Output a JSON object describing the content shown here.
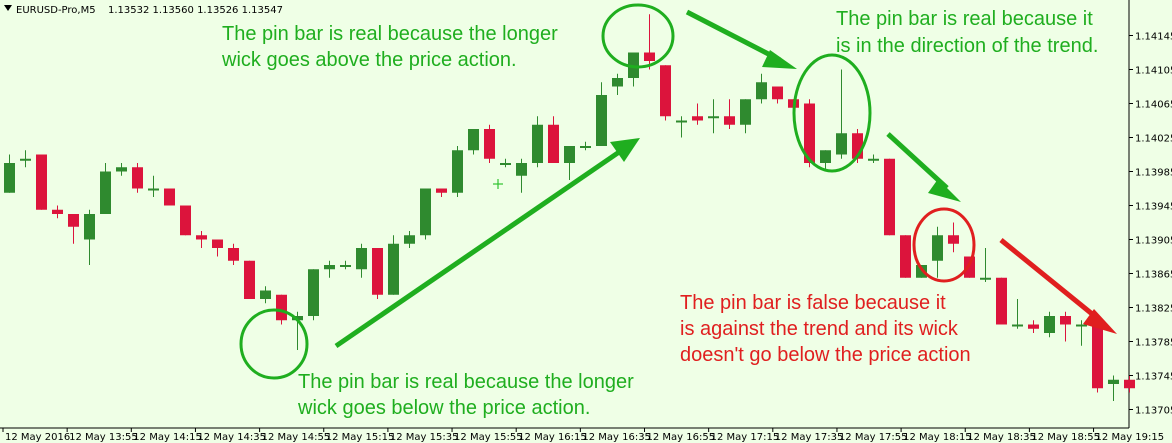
{
  "header": {
    "symbol": "EURUSD-Pro,M5",
    "ohlc": "1.13532 1.13560 1.13526 1.13547"
  },
  "colors": {
    "background": "#efffe6",
    "bull": "#2f8a2f",
    "bear": "#dc143c",
    "annotation_green": "#1fae1f",
    "annotation_red": "#e01f1f"
  },
  "chart_data": {
    "type": "candlestick",
    "title": "",
    "xlabel": "",
    "ylabel": "",
    "ylim": [
      1.13695,
      1.14175
    ],
    "y_ticks": [
      "1.14145",
      "1.14105",
      "1.14065",
      "1.14025",
      "1.13985",
      "1.13945",
      "1.13905",
      "1.13865",
      "1.13825",
      "1.13785",
      "1.13745",
      "1.13705"
    ],
    "x_ticks": [
      "12 May 2016",
      "12 May 13:55",
      "12 May 14:15",
      "12 May 14:35",
      "12 May 14:55",
      "12 May 15:15",
      "12 May 15:35",
      "12 May 15:55",
      "12 May 16:15",
      "12 May 16:35",
      "12 May 16:55",
      "12 May 17:15",
      "12 May 17:35",
      "12 May 17:55",
      "12 May 18:15",
      "12 May 18:35",
      "12 May 18:55",
      "12 May 19:15"
    ],
    "candles": [
      {
        "o": 1.1396,
        "h": 1.14005,
        "l": 1.1396,
        "c": 1.13995
      },
      {
        "o": 1.14,
        "h": 1.1401,
        "l": 1.1399,
        "c": 1.14
      },
      {
        "o": 1.14005,
        "h": 1.14005,
        "l": 1.1394,
        "c": 1.1394
      },
      {
        "o": 1.1394,
        "h": 1.13945,
        "l": 1.1393,
        "c": 1.13935
      },
      {
        "o": 1.13935,
        "h": 1.13935,
        "l": 1.139,
        "c": 1.1392
      },
      {
        "o": 1.13905,
        "h": 1.1394,
        "l": 1.13875,
        "c": 1.13935
      },
      {
        "o": 1.13935,
        "h": 1.13995,
        "l": 1.13935,
        "c": 1.13985
      },
      {
        "o": 1.13985,
        "h": 1.13995,
        "l": 1.1398,
        "c": 1.1399
      },
      {
        "o": 1.1399,
        "h": 1.13995,
        "l": 1.1396,
        "c": 1.13965
      },
      {
        "o": 1.13965,
        "h": 1.1398,
        "l": 1.13955,
        "c": 1.13965
      },
      {
        "o": 1.13965,
        "h": 1.13965,
        "l": 1.13945,
        "c": 1.13945
      },
      {
        "o": 1.13945,
        "h": 1.13945,
        "l": 1.1391,
        "c": 1.1391
      },
      {
        "o": 1.1391,
        "h": 1.13915,
        "l": 1.13895,
        "c": 1.13905
      },
      {
        "o": 1.13905,
        "h": 1.13905,
        "l": 1.13885,
        "c": 1.13895
      },
      {
        "o": 1.13895,
        "h": 1.139,
        "l": 1.13875,
        "c": 1.1388
      },
      {
        "o": 1.1388,
        "h": 1.1388,
        "l": 1.13835,
        "c": 1.13835
      },
      {
        "o": 1.13835,
        "h": 1.1385,
        "l": 1.1383,
        "c": 1.13845
      },
      {
        "o": 1.1384,
        "h": 1.1384,
        "l": 1.13805,
        "c": 1.1381
      },
      {
        "o": 1.1381,
        "h": 1.1382,
        "l": 1.13775,
        "c": 1.13815
      },
      {
        "o": 1.13815,
        "h": 1.1387,
        "l": 1.1381,
        "c": 1.1387
      },
      {
        "o": 1.1387,
        "h": 1.1388,
        "l": 1.1386,
        "c": 1.13875
      },
      {
        "o": 1.13875,
        "h": 1.1388,
        "l": 1.1387,
        "c": 1.13875
      },
      {
        "o": 1.1387,
        "h": 1.139,
        "l": 1.1386,
        "c": 1.13895
      },
      {
        "o": 1.13895,
        "h": 1.13895,
        "l": 1.13835,
        "c": 1.1384
      },
      {
        "o": 1.1384,
        "h": 1.1391,
        "l": 1.1384,
        "c": 1.139
      },
      {
        "o": 1.139,
        "h": 1.13915,
        "l": 1.13895,
        "c": 1.1391
      },
      {
        "o": 1.1391,
        "h": 1.13965,
        "l": 1.13905,
        "c": 1.13965
      },
      {
        "o": 1.13965,
        "h": 1.13965,
        "l": 1.13955,
        "c": 1.1396
      },
      {
        "o": 1.1396,
        "h": 1.14015,
        "l": 1.13955,
        "c": 1.1401
      },
      {
        "o": 1.1401,
        "h": 1.14035,
        "l": 1.14005,
        "c": 1.14035
      },
      {
        "o": 1.14035,
        "h": 1.1404,
        "l": 1.13995,
        "c": 1.14
      },
      {
        "o": 1.13995,
        "h": 1.14,
        "l": 1.1399,
        "c": 1.13995
      },
      {
        "o": 1.1398,
        "h": 1.14,
        "l": 1.1396,
        "c": 1.13995
      },
      {
        "o": 1.13995,
        "h": 1.1405,
        "l": 1.1399,
        "c": 1.1404
      },
      {
        "o": 1.1404,
        "h": 1.1405,
        "l": 1.13995,
        "c": 1.13995
      },
      {
        "o": 1.13995,
        "h": 1.14015,
        "l": 1.13975,
        "c": 1.14015
      },
      {
        "o": 1.14015,
        "h": 1.1402,
        "l": 1.1401,
        "c": 1.14015
      },
      {
        "o": 1.14015,
        "h": 1.1409,
        "l": 1.14015,
        "c": 1.14075
      },
      {
        "o": 1.14085,
        "h": 1.141,
        "l": 1.14075,
        "c": 1.14095
      },
      {
        "o": 1.14095,
        "h": 1.14125,
        "l": 1.14085,
        "c": 1.14125
      },
      {
        "o": 1.14125,
        "h": 1.1417,
        "l": 1.14105,
        "c": 1.14115
      },
      {
        "o": 1.1411,
        "h": 1.1411,
        "l": 1.14045,
        "c": 1.1405
      },
      {
        "o": 1.14045,
        "h": 1.1405,
        "l": 1.14025,
        "c": 1.14045
      },
      {
        "o": 1.1405,
        "h": 1.14065,
        "l": 1.1404,
        "c": 1.14045
      },
      {
        "o": 1.1405,
        "h": 1.1407,
        "l": 1.1403,
        "c": 1.1405
      },
      {
        "o": 1.1405,
        "h": 1.1407,
        "l": 1.14035,
        "c": 1.1404
      },
      {
        "o": 1.1404,
        "h": 1.1407,
        "l": 1.1403,
        "c": 1.1407
      },
      {
        "o": 1.1407,
        "h": 1.141,
        "l": 1.14065,
        "c": 1.1409
      },
      {
        "o": 1.14085,
        "h": 1.14085,
        "l": 1.14065,
        "c": 1.1407
      },
      {
        "o": 1.1407,
        "h": 1.1407,
        "l": 1.14055,
        "c": 1.1406
      },
      {
        "o": 1.14065,
        "h": 1.1407,
        "l": 1.1399,
        "c": 1.13995
      },
      {
        "o": 1.13995,
        "h": 1.1401,
        "l": 1.13985,
        "c": 1.1401
      },
      {
        "o": 1.14005,
        "h": 1.14105,
        "l": 1.14,
        "c": 1.1403
      },
      {
        "o": 1.1403,
        "h": 1.14035,
        "l": 1.13995,
        "c": 1.14
      },
      {
        "o": 1.14,
        "h": 1.14005,
        "l": 1.13995,
        "c": 1.14
      },
      {
        "o": 1.14,
        "h": 1.14,
        "l": 1.1391,
        "c": 1.1391
      },
      {
        "o": 1.1391,
        "h": 1.1391,
        "l": 1.1386,
        "c": 1.1386
      },
      {
        "o": 1.1386,
        "h": 1.13875,
        "l": 1.1386,
        "c": 1.13875
      },
      {
        "o": 1.1388,
        "h": 1.1392,
        "l": 1.1386,
        "c": 1.1391
      },
      {
        "o": 1.1391,
        "h": 1.13925,
        "l": 1.1389,
        "c": 1.139
      },
      {
        "o": 1.13885,
        "h": 1.13885,
        "l": 1.1386,
        "c": 1.1386
      },
      {
        "o": 1.1386,
        "h": 1.13895,
        "l": 1.13855,
        "c": 1.1386
      },
      {
        "o": 1.1386,
        "h": 1.1386,
        "l": 1.13805,
        "c": 1.13805
      },
      {
        "o": 1.13805,
        "h": 1.13835,
        "l": 1.138,
        "c": 1.13805
      },
      {
        "o": 1.13805,
        "h": 1.1381,
        "l": 1.13795,
        "c": 1.138
      },
      {
        "o": 1.13795,
        "h": 1.1382,
        "l": 1.1379,
        "c": 1.13815
      },
      {
        "o": 1.13815,
        "h": 1.1382,
        "l": 1.13785,
        "c": 1.13805
      },
      {
        "o": 1.13805,
        "h": 1.1381,
        "l": 1.1378,
        "c": 1.13805
      },
      {
        "o": 1.13805,
        "h": 1.13805,
        "l": 1.13725,
        "c": 1.1373
      },
      {
        "o": 1.13735,
        "h": 1.13745,
        "l": 1.13715,
        "c": 1.1374
      },
      {
        "o": 1.1374,
        "h": 1.13745,
        "l": 1.13725,
        "c": 1.1373
      }
    ],
    "annotations": [
      {
        "text_lines": [
          "The pin bar is real because the longer",
          "wick goes above the price action."
        ],
        "color": "green"
      },
      {
        "text_lines": [
          "The pin bar is real because it",
          "is in the direction of the trend."
        ],
        "color": "green"
      },
      {
        "text_lines": [
          "The pin bar is real because the longer",
          "wick goes below the price action."
        ],
        "color": "green"
      },
      {
        "text_lines": [
          "The pin bar is false because it",
          "is against the trend and its wick",
          "doesn't go below the price action"
        ],
        "color": "red"
      }
    ]
  }
}
